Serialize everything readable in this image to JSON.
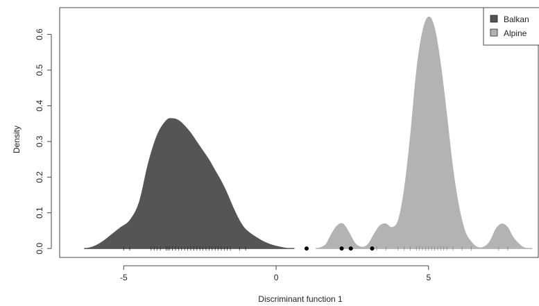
{
  "chart_data": {
    "type": "area",
    "xlabel": "Discriminant function 1",
    "ylabel": "Density",
    "xlim": [
      -7.1,
      8.6
    ],
    "ylim": [
      -0.025,
      0.675
    ],
    "x_ticks": [
      -5,
      0,
      5
    ],
    "x_tick_labels": [
      "-5",
      "0",
      "5"
    ],
    "y_ticks": [
      0.0,
      0.1,
      0.2,
      0.3,
      0.4,
      0.5,
      0.6
    ],
    "y_tick_labels": [
      "0.0",
      "0.1",
      "0.2",
      "0.3",
      "0.4",
      "0.5",
      "0.6"
    ],
    "grid": false,
    "legend": {
      "placement": "top-right",
      "entries": [
        {
          "label": "Balkan",
          "color": "#555555"
        },
        {
          "label": "Alpine",
          "color": "#b3b3b3"
        }
      ]
    },
    "series": [
      {
        "name": "Balkan",
        "color": "#555555",
        "density_x": [
          -6.3,
          -6.0,
          -5.7,
          -5.4,
          -5.1,
          -4.8,
          -4.5,
          -4.2,
          -3.9,
          -3.6,
          -3.4,
          -3.2,
          -3.0,
          -2.8,
          -2.6,
          -2.4,
          -2.2,
          -2.0,
          -1.8,
          -1.6,
          -1.4,
          -1.2,
          -1.0,
          -0.7,
          -0.4,
          -0.1,
          0.2,
          0.4,
          0.6
        ],
        "density_y": [
          0.0,
          0.006,
          0.02,
          0.04,
          0.06,
          0.08,
          0.13,
          0.24,
          0.32,
          0.36,
          0.365,
          0.36,
          0.345,
          0.325,
          0.3,
          0.275,
          0.25,
          0.22,
          0.19,
          0.155,
          0.115,
          0.08,
          0.055,
          0.035,
          0.02,
          0.01,
          0.004,
          0.001,
          0.0
        ],
        "rug_x": [
          -5.0,
          -4.8,
          -4.1,
          -4.0,
          -3.9,
          -3.8,
          -3.6,
          -3.55,
          -3.5,
          -3.4,
          -3.3,
          -3.2,
          -3.1,
          -3.0,
          -2.9,
          -2.8,
          -2.7,
          -2.6,
          -2.5,
          -2.4,
          -2.3,
          -2.2,
          -2.1,
          -2.0,
          -1.9,
          -1.8,
          -1.7,
          -1.6,
          -1.5,
          -1.2,
          -1.0
        ]
      },
      {
        "name": "Alpine",
        "color": "#b3b3b3",
        "density_x": [
          1.3,
          1.6,
          1.8,
          2.0,
          2.2,
          2.4,
          2.6,
          2.8,
          3.0,
          3.2,
          3.4,
          3.6,
          3.8,
          4.0,
          4.2,
          4.4,
          4.6,
          4.8,
          5.0,
          5.2,
          5.4,
          5.6,
          5.8,
          6.0,
          6.2,
          6.4,
          6.6,
          6.8,
          7.0,
          7.2,
          7.4,
          7.6,
          7.8,
          8.1,
          8.4
        ],
        "density_y": [
          0.0,
          0.01,
          0.04,
          0.065,
          0.07,
          0.045,
          0.015,
          0.005,
          0.012,
          0.04,
          0.065,
          0.07,
          0.06,
          0.08,
          0.17,
          0.32,
          0.5,
          0.61,
          0.65,
          0.62,
          0.52,
          0.38,
          0.23,
          0.12,
          0.05,
          0.02,
          0.005,
          0.005,
          0.02,
          0.055,
          0.07,
          0.06,
          0.03,
          0.005,
          0.0
        ],
        "rug_x": [
          3.3,
          3.6,
          4.0,
          4.2,
          4.4,
          4.6,
          4.7,
          4.8,
          4.9,
          5.0,
          5.1,
          5.2,
          5.3,
          5.4,
          5.5,
          5.6,
          5.8,
          6.1,
          6.4,
          7.3,
          7.6
        ]
      }
    ],
    "points": {
      "color": "#000000",
      "x": [
        1.0,
        2.15,
        2.45,
        3.15
      ],
      "y": [
        0.0,
        0.0,
        0.0,
        0.0
      ]
    }
  }
}
